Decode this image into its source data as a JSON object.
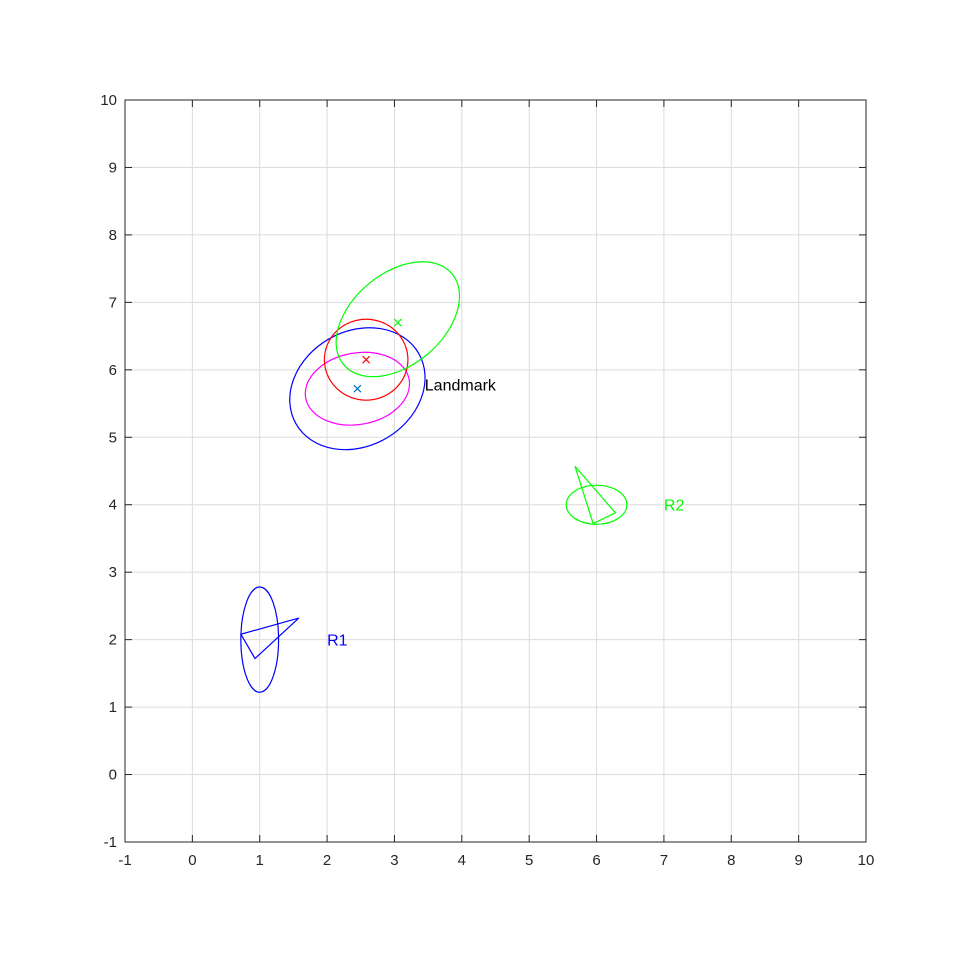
{
  "chart_data": {
    "type": "scatter",
    "title": "",
    "xlabel": "",
    "ylabel": "",
    "xlim": [
      -1,
      10
    ],
    "ylim": [
      -1,
      10
    ],
    "xticks": [
      -1,
      0,
      1,
      2,
      3,
      4,
      5,
      6,
      7,
      8,
      9,
      10
    ],
    "yticks": [
      -1,
      0,
      1,
      2,
      3,
      4,
      5,
      6,
      7,
      8,
      9,
      10
    ],
    "grid": true,
    "box": true,
    "robots": [
      {
        "label": "R1",
        "color": "#0000ff",
        "label_pos": [
          2,
          2
        ],
        "triangle": [
          [
            0.72,
            2.08
          ],
          [
            1.58,
            2.32
          ],
          [
            0.93,
            1.72
          ]
        ],
        "ellipse": {
          "center": [
            1.0,
            2.0
          ],
          "rx": 0.28,
          "ry": 0.78,
          "angle_deg": 0
        }
      },
      {
        "label": "R2",
        "color": "#00ff00",
        "label_pos": [
          7,
          4
        ],
        "triangle": [
          [
            5.68,
            4.57
          ],
          [
            6.28,
            3.88
          ],
          [
            5.95,
            3.72
          ]
        ],
        "ellipse": {
          "center": [
            6.0,
            4.0
          ],
          "rx": 0.45,
          "ry": 0.29,
          "angle_deg": 0
        }
      }
    ],
    "landmark": {
      "label": "Landmark",
      "color": "#000000",
      "label_pos": [
        3.45,
        5.78
      ]
    },
    "estimates": [
      {
        "name": "blue",
        "color": "#0000ff",
        "marker": [
          2.45,
          5.72
        ],
        "marker_color": "#0072bd",
        "ellipse": {
          "center": [
            2.45,
            5.72
          ],
          "rx": 1.05,
          "ry": 0.85,
          "angle_deg": -30
        }
      },
      {
        "name": "magenta",
        "color": "#ff00ff",
        "ellipse": {
          "center": [
            2.45,
            5.72
          ],
          "rx": 0.78,
          "ry": 0.53,
          "angle_deg": -10
        }
      },
      {
        "name": "red",
        "color": "#ff0000",
        "marker": [
          2.58,
          6.15
        ],
        "marker_color": "#ff0000",
        "ellipse": {
          "center": [
            2.58,
            6.15
          ],
          "rx": 0.62,
          "ry": 0.6,
          "angle_deg": 0
        }
      },
      {
        "name": "green",
        "color": "#00ff00",
        "marker": [
          3.05,
          6.7
        ],
        "marker_color": "#00ff00",
        "ellipse": {
          "center": [
            3.05,
            6.75
          ],
          "rx": 1.05,
          "ry": 0.68,
          "angle_deg": -40
        }
      }
    ]
  }
}
